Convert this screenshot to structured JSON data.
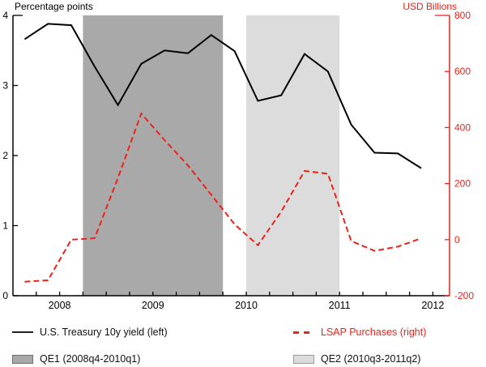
{
  "chart_data": {
    "type": "line",
    "title": "",
    "categories": [
      "2008q1",
      "2008q2",
      "2008q3",
      "2008q4",
      "2009q1",
      "2009q2",
      "2009q3",
      "2009q4",
      "2010q1",
      "2010q2",
      "2010q3",
      "2010q4",
      "2011q1",
      "2011q2",
      "2011q3",
      "2011q4",
      "2012q1",
      "2012q2"
    ],
    "series": [
      {
        "name": "U.S. Treasury 10y yield (left)",
        "axis": "left",
        "style": "solid",
        "color": "#000000",
        "values": [
          3.66,
          3.88,
          3.86,
          3.27,
          2.72,
          3.31,
          3.5,
          3.46,
          3.72,
          3.49,
          2.78,
          2.86,
          3.45,
          3.2,
          2.44,
          2.04,
          2.03,
          1.82
        ]
      },
      {
        "name": "LSAP Purchases (right)",
        "axis": "right",
        "style": "dashed",
        "color": "#ee2219",
        "values": [
          -150,
          -145,
          0,
          5,
          220,
          450,
          355,
          265,
          160,
          55,
          -20,
          100,
          245,
          235,
          -5,
          -40,
          -25,
          5
        ]
      }
    ],
    "bands": [
      {
        "name": "QE1 (2008q4-2010q1)",
        "start_quarter": 3,
        "end_quarter": 9,
        "color": "#a9a9a9",
        "border": "#6e6e6e"
      },
      {
        "name": "QE2 (2010q3-2011q2)",
        "start_quarter": 10,
        "end_quarter": 14,
        "color": "#dcdcdc",
        "border": "#9a9a9a"
      }
    ],
    "left_axis": {
      "label": "Percentage points",
      "ticks": [
        0,
        1,
        2,
        3,
        4
      ],
      "range": [
        0,
        4
      ],
      "color": "#000000"
    },
    "right_axis": {
      "label": "USD Billions",
      "ticks": [
        -200,
        0,
        200,
        400,
        600,
        800
      ],
      "range": [
        -200,
        800
      ],
      "color": "#ee2219"
    },
    "x_axis": {
      "year_labels": [
        {
          "text": "2008",
          "t": 2
        },
        {
          "text": "2009",
          "t": 6
        },
        {
          "text": "2010",
          "t": 10
        },
        {
          "text": "2011",
          "t": 14
        },
        {
          "text": "2012",
          "t": 18
        }
      ],
      "quarter_ticks_from": 1,
      "quarter_ticks_to": 18
    },
    "grid": "off",
    "legend_position": "bottom"
  }
}
